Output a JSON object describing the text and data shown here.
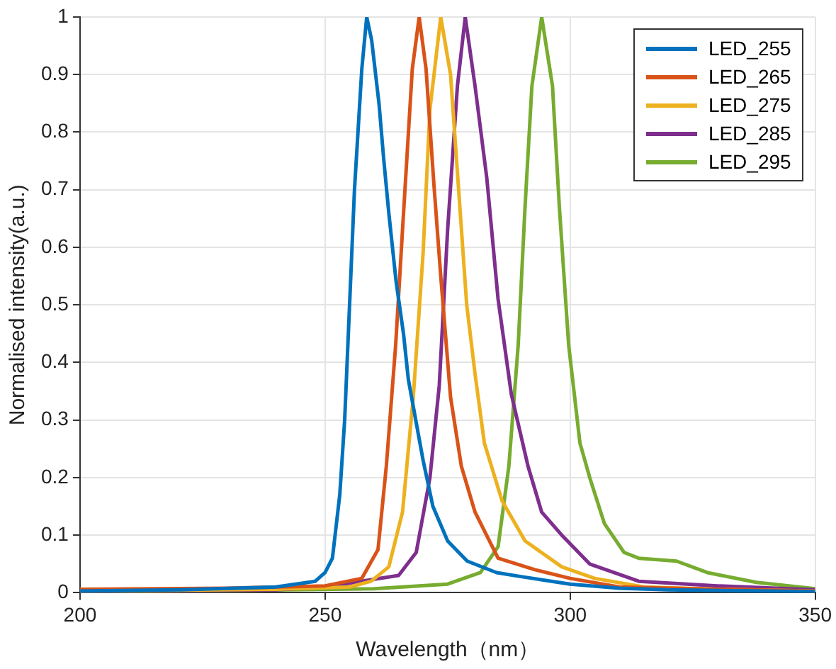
{
  "chart_data": {
    "type": "line",
    "xlabel": "Wavelength（nm）",
    "ylabel": "Normalised intensity(a.u.)",
    "xlim": [
      200,
      350
    ],
    "xticks": [
      200,
      250,
      300,
      350
    ],
    "ylim": [
      0,
      1
    ],
    "yticks": [
      0,
      0.1,
      0.2,
      0.3,
      0.4,
      0.5,
      0.6,
      0.7,
      0.8,
      0.9,
      1
    ],
    "grid": true,
    "legend": "top right",
    "marker": "none",
    "line_style": "solid",
    "series": [
      {
        "name": "LED_255",
        "color": "#0072bd",
        "x": [
          200,
          220,
          240,
          248,
          250,
          251.5,
          253,
          254,
          255,
          256,
          257.5,
          258.5,
          259.5,
          261,
          262,
          263,
          264.5,
          266,
          267,
          268.5,
          270,
          271,
          272,
          275,
          279,
          285,
          290,
          300,
          310,
          320,
          350
        ],
        "values": [
          0.003,
          0.005,
          0.01,
          0.02,
          0.035,
          0.06,
          0.17,
          0.3,
          0.5,
          0.7,
          0.91,
          1,
          0.96,
          0.85,
          0.75,
          0.66,
          0.54,
          0.45,
          0.37,
          0.3,
          0.23,
          0.19,
          0.15,
          0.09,
          0.055,
          0.035,
          0.028,
          0.015,
          0.008,
          0.005,
          0.002
        ]
      },
      {
        "name": "LED_265",
        "color": "#d95319",
        "x": [
          200,
          230,
          250,
          257.5,
          260.8,
          262.5,
          264.4,
          265.8,
          267.8,
          269.2,
          270.6,
          272.2,
          273.6,
          275.6,
          277.8,
          280.6,
          285.3,
          292.8,
          300,
          310,
          330,
          350
        ],
        "values": [
          0.006,
          0.008,
          0.012,
          0.025,
          0.075,
          0.22,
          0.43,
          0.63,
          0.91,
          1,
          0.91,
          0.71,
          0.55,
          0.34,
          0.22,
          0.14,
          0.06,
          0.04,
          0.025,
          0.01,
          0.006,
          0.003
        ]
      },
      {
        "name": "LED_275",
        "color": "#edb120",
        "x": [
          200,
          240,
          255,
          259.4,
          263,
          265.8,
          268,
          270,
          271.4,
          273.6,
          275.6,
          277.5,
          278.9,
          280.6,
          282.5,
          286.1,
          290.8,
          298.3,
          305,
          315,
          330,
          350
        ],
        "values": [
          0.003,
          0.006,
          0.01,
          0.02,
          0.045,
          0.14,
          0.34,
          0.59,
          0.84,
          1,
          0.9,
          0.67,
          0.5,
          0.38,
          0.26,
          0.16,
          0.09,
          0.045,
          0.025,
          0.01,
          0.006,
          0.003
        ]
      },
      {
        "name": "LED_285",
        "color": "#7e2f8e",
        "x": [
          200,
          240,
          250,
          265,
          268.6,
          271.4,
          273.3,
          275,
          277,
          278.6,
          280.6,
          283,
          285.3,
          288,
          291.4,
          294.2,
          298.3,
          304,
          314,
          330,
          350
        ],
        "values": [
          0.002,
          0.005,
          0.01,
          0.03,
          0.07,
          0.2,
          0.36,
          0.63,
          0.88,
          1,
          0.88,
          0.72,
          0.51,
          0.345,
          0.22,
          0.14,
          0.1,
          0.05,
          0.02,
          0.012,
          0.005
        ]
      },
      {
        "name": "LED_295",
        "color": "#77ac30",
        "x": [
          200,
          260,
          275,
          281.7,
          285.3,
          287.5,
          289.4,
          290.8,
          292.2,
          294.2,
          296.4,
          297.8,
          299.7,
          302,
          304,
          307,
          311,
          314,
          321.7,
          328,
          338,
          350
        ],
        "values": [
          0.001,
          0.007,
          0.015,
          0.035,
          0.08,
          0.22,
          0.43,
          0.67,
          0.88,
          1,
          0.88,
          0.67,
          0.43,
          0.26,
          0.2,
          0.12,
          0.07,
          0.06,
          0.055,
          0.035,
          0.018,
          0.007
        ]
      }
    ]
  }
}
